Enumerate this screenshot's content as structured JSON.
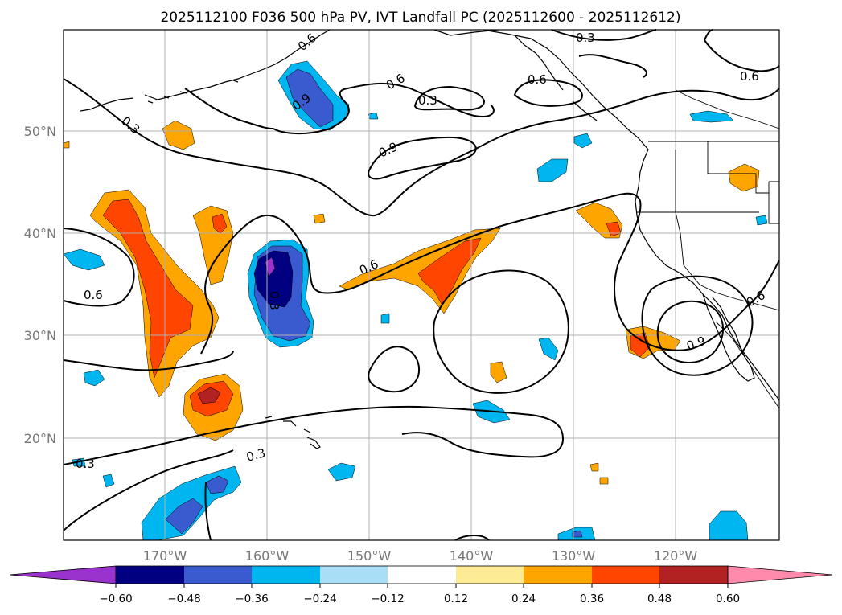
{
  "title": "2025112100 F036 500 hPa PV, IVT Landfall PC (2025112600 - 2025112612)",
  "map": {
    "lat_labels": [
      "50°N",
      "40°N",
      "30°N",
      "20°N"
    ],
    "lon_labels": [
      "170°W",
      "160°W",
      "150°W",
      "140°W",
      "130°W",
      "120°W"
    ],
    "contour_labels": [
      "0.3",
      "0.6",
      "0.9",
      "0.6",
      "0.3",
      "0.9",
      "0.6",
      "0.3",
      "0.6",
      "0.3",
      "0.6",
      "0.6",
      "0.9",
      "0.6",
      "0.3",
      "0.3"
    ]
  },
  "colorbar": {
    "ticks": [
      "−0.60",
      "−0.48",
      "−0.36",
      "−0.24",
      "−0.12",
      "0.12",
      "0.24",
      "0.36",
      "0.48",
      "0.60"
    ],
    "colors": [
      "#9a32cd",
      "#000080",
      "#3a5bcf",
      "#00b6f0",
      "#a9def7",
      "#ffffff",
      "#feeb95",
      "#ffa500",
      "#ff4500",
      "#b22222",
      "#ff8aab"
    ]
  }
}
